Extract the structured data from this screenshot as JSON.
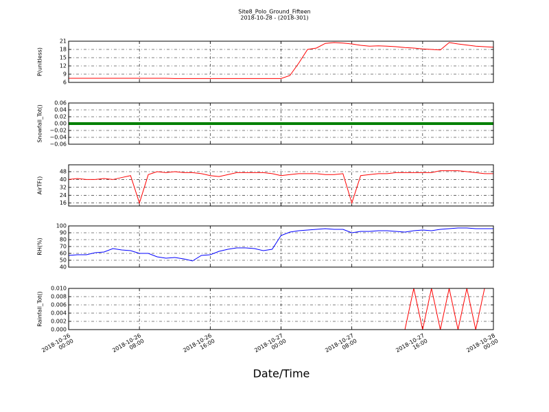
{
  "title": "Site8_Polo_Ground_Fifteen",
  "subtitle": "2018-10-28 - (2018-301)",
  "x_label": "Date/Time",
  "xlim": [
    "2018-10-26 00:00",
    "2018-10-28 00:00"
  ],
  "xticks": [
    {
      "value": "2018-10-26 00:00",
      "label": "2018-10-26\n00:00"
    },
    {
      "value": "2018-10-26 08:00",
      "label": "2018-10-26\n08:00"
    },
    {
      "value": "2018-10-26 16:00",
      "label": "2018-10-26\n16:00"
    },
    {
      "value": "2018-10-27 00:00",
      "label": "2018-10-27\n00:00"
    },
    {
      "value": "2018-10-27 08:00",
      "label": "2018-10-27\n08:00"
    },
    {
      "value": "2018-10-27 16:00",
      "label": "2018-10-27\n16:00"
    },
    {
      "value": "2018-10-28 00:00",
      "label": "2018-10-28\n00:00"
    }
  ],
  "x": [
    "2018-10-26 00:00",
    "2018-10-26 01:00",
    "2018-10-26 02:00",
    "2018-10-26 03:00",
    "2018-10-26 04:00",
    "2018-10-26 05:00",
    "2018-10-26 06:00",
    "2018-10-26 07:00",
    "2018-10-26 08:00",
    "2018-10-26 09:00",
    "2018-10-26 10:00",
    "2018-10-26 11:00",
    "2018-10-26 12:00",
    "2018-10-26 13:00",
    "2018-10-26 14:00",
    "2018-10-26 15:00",
    "2018-10-26 16:00",
    "2018-10-26 17:00",
    "2018-10-26 18:00",
    "2018-10-26 19:00",
    "2018-10-26 20:00",
    "2018-10-26 21:00",
    "2018-10-26 22:00",
    "2018-10-26 23:00",
    "2018-10-27 00:00",
    "2018-10-27 01:00",
    "2018-10-27 02:00",
    "2018-10-27 03:00",
    "2018-10-27 04:00",
    "2018-10-27 05:00",
    "2018-10-27 06:00",
    "2018-10-27 07:00",
    "2018-10-27 08:00",
    "2018-10-27 09:00",
    "2018-10-27 10:00",
    "2018-10-27 11:00",
    "2018-10-27 12:00",
    "2018-10-27 13:00",
    "2018-10-27 14:00",
    "2018-10-27 15:00",
    "2018-10-27 16:00",
    "2018-10-27 17:00",
    "2018-10-27 18:00",
    "2018-10-27 19:00",
    "2018-10-27 20:00",
    "2018-10-27 21:00",
    "2018-10-27 22:00",
    "2018-10-27 23:00",
    "2018-10-28 00:00"
  ],
  "chart_data": [
    {
      "type": "line",
      "y_label": "P(unitless)",
      "color": "#ff0000",
      "ylim": [
        6,
        21
      ],
      "yticks": [
        6,
        9,
        12,
        15,
        18,
        21
      ],
      "grid": true,
      "values": [
        7.5,
        7.5,
        7.5,
        7.5,
        7.5,
        7.5,
        7.5,
        7.5,
        7.5,
        7.5,
        7.5,
        7.5,
        7.4,
        7.4,
        7.4,
        7.4,
        7.4,
        7.4,
        7.4,
        7.4,
        7.4,
        7.4,
        7.4,
        7.4,
        7.4,
        8.5,
        13,
        18,
        18.5,
        20.2,
        20.5,
        20.3,
        20,
        19.5,
        19.2,
        19.3,
        19.2,
        19,
        18.7,
        18.5,
        18.2,
        18,
        17.8,
        20.5,
        20,
        19.6,
        19.2,
        19,
        18.8
      ]
    },
    {
      "type": "line",
      "y_label": "Snowfall_Tot()",
      "color": "#008000",
      "ylim": [
        -0.06,
        0.06
      ],
      "grid": true,
      "yticks": [
        {
          "value": -0.06,
          "label": "−0.06"
        },
        {
          "value": -0.04,
          "label": "−0.04"
        },
        {
          "value": -0.02,
          "label": "−0.02"
        },
        {
          "value": 0,
          "label": "0.00"
        },
        {
          "value": 0.02,
          "label": "0.02"
        },
        {
          "value": 0.04,
          "label": "0.04"
        },
        {
          "value": 0.06,
          "label": "0.06"
        }
      ],
      "values": [
        0,
        0,
        0,
        0,
        0,
        0,
        0,
        0,
        0,
        0,
        0,
        0,
        0,
        0,
        0,
        0,
        0,
        0,
        0,
        0,
        0,
        0,
        0,
        0,
        0,
        0,
        0,
        0,
        0,
        0,
        0,
        0,
        0,
        0,
        0,
        0,
        0,
        0,
        0,
        0,
        0,
        0,
        0,
        0,
        0,
        0,
        0,
        0,
        0
      ]
    },
    {
      "type": "line",
      "y_label": "AirTF()",
      "color": "#ff0000",
      "ylim": [
        13,
        55
      ],
      "yticks": [
        16,
        24,
        32,
        40,
        48
      ],
      "grid": true,
      "values": [
        40,
        41,
        40,
        40,
        41,
        40,
        42,
        44,
        16,
        45,
        48,
        47,
        48,
        47,
        47,
        46,
        44,
        43,
        45,
        47,
        47,
        47,
        47,
        46,
        44,
        45,
        46,
        46,
        46,
        45,
        45,
        46,
        16,
        44,
        45,
        46,
        46,
        47,
        47,
        47,
        47,
        47,
        49,
        49,
        49,
        48,
        47,
        46,
        46
      ]
    },
    {
      "type": "line",
      "y_label": "RH(%)",
      "color": "#0000ff",
      "ylim": [
        40,
        100
      ],
      "yticks": [
        40,
        50,
        60,
        70,
        80,
        90,
        100
      ],
      "grid": true,
      "values": [
        57,
        58,
        58,
        61,
        62,
        67,
        65,
        64,
        60,
        60,
        55,
        53,
        54,
        52,
        49,
        57,
        58,
        63,
        66,
        68,
        68,
        67,
        64,
        66,
        86,
        91,
        93,
        94,
        95,
        96,
        95,
        95,
        90,
        92,
        92,
        93,
        93,
        92,
        91,
        93,
        94,
        93,
        95,
        96,
        97,
        97,
        96,
        96,
        96
      ]
    },
    {
      "type": "line",
      "y_label": "Rainfall_Tot()",
      "color": "#ff0000",
      "ylim": [
        0,
        0.01
      ],
      "grid": true,
      "yticks": [
        {
          "value": 0,
          "label": "0.000"
        },
        {
          "value": 0.002,
          "label": "0.002"
        },
        {
          "value": 0.004,
          "label": "0.004"
        },
        {
          "value": 0.006,
          "label": "0.006"
        },
        {
          "value": 0.008,
          "label": "0.008"
        },
        {
          "value": 0.01,
          "label": "0.010"
        }
      ],
      "values": [
        0,
        0,
        0,
        0,
        0,
        0,
        0,
        0,
        0,
        0,
        0,
        0,
        0,
        0,
        0,
        0,
        0,
        0,
        0,
        0,
        0,
        0,
        0,
        0,
        0,
        0,
        0,
        0,
        0,
        0,
        0,
        0,
        0,
        0,
        0,
        0,
        0,
        0,
        0,
        0.01,
        0,
        0.01,
        0,
        0.01,
        0,
        0.01,
        0,
        0.01,
        0.01
      ]
    }
  ]
}
